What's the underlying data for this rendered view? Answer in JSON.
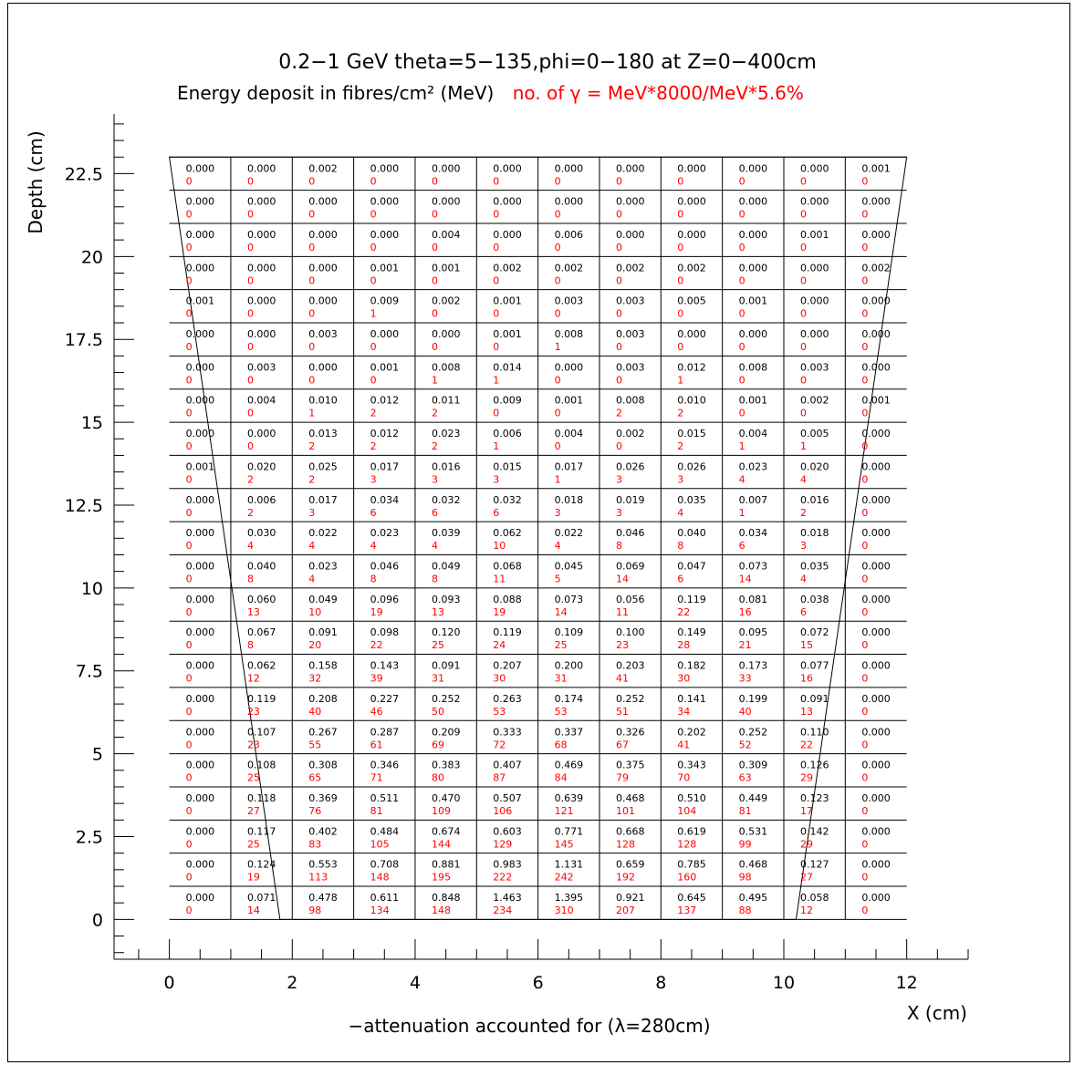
{
  "chart_data": {
    "type": "heatmap",
    "title": "0.2−1 GeV theta=5−135,phi=0−180 at Z=0−400cm",
    "subtitle": "Energy deposit in fibres/cm² (MeV)",
    "subtitle_red": "no. of γ = MeV*8000/MeV*5.6%",
    "xlabel": "X (cm)",
    "ylabel": "Depth (cm)",
    "note": "−attenuation accounted for (λ=280cm)",
    "xlim": [
      -0.9,
      13.0
    ],
    "ylim": [
      -1.2,
      24.3
    ],
    "x_ticks": [
      0,
      2,
      4,
      6,
      8,
      10,
      12
    ],
    "y_ticks": [
      0,
      2.5,
      5,
      7.5,
      10,
      12.5,
      15,
      17.5,
      20,
      22.5
    ],
    "x_tick_labels": [
      "0",
      "2",
      "4",
      "6",
      "8",
      "10",
      "12"
    ],
    "y_tick_labels": [
      "0",
      "2.5",
      "5",
      "7.5",
      "10",
      "12.5",
      "15",
      "17.5",
      "20",
      "22.5"
    ],
    "x_edges": [
      0,
      2,
      4,
      6,
      8,
      10,
      12
    ],
    "grid_x": [
      0,
      1,
      2,
      3,
      4,
      5,
      6,
      7,
      8,
      9,
      10,
      11,
      12
    ],
    "grid_y": [
      0,
      1,
      2,
      3,
      4,
      5,
      6,
      7,
      8,
      9,
      10,
      11,
      12,
      13,
      14,
      15,
      16,
      17,
      18,
      19,
      20,
      21,
      22,
      23
    ],
    "trapezoid": {
      "bottom": [
        1.8,
        10.2
      ],
      "top": [
        0,
        12
      ],
      "y_top": 23
    },
    "row_y_bottom_first": [
      0,
      1,
      2,
      3,
      4,
      5,
      6,
      7,
      8,
      9,
      10,
      11,
      12,
      13,
      14,
      15,
      16,
      17,
      18,
      19,
      20,
      21,
      22
    ],
    "energy_rows_top_first": [
      [
        "0.000",
        "0.000",
        "0.002",
        "0.000",
        "0.000",
        "0.000",
        "0.000",
        "0.000",
        "0.000",
        "0.000",
        "0.000",
        "0.001"
      ],
      [
        "0.000",
        "0.000",
        "0.000",
        "0.000",
        "0.000",
        "0.000",
        "0.000",
        "0.000",
        "0.000",
        "0.000",
        "0.000",
        "0.000"
      ],
      [
        "0.000",
        "0.000",
        "0.000",
        "0.000",
        "0.004",
        "0.000",
        "0.006",
        "0.000",
        "0.000",
        "0.000",
        "0.001",
        "0.000"
      ],
      [
        "0.000",
        "0.000",
        "0.000",
        "0.001",
        "0.001",
        "0.002",
        "0.002",
        "0.002",
        "0.002",
        "0.000",
        "0.000",
        "0.002"
      ],
      [
        "0.001",
        "0.000",
        "0.000",
        "0.009",
        "0.002",
        "0.001",
        "0.003",
        "0.003",
        "0.005",
        "0.001",
        "0.000",
        "0.000"
      ],
      [
        "0.000",
        "0.000",
        "0.003",
        "0.000",
        "0.000",
        "0.001",
        "0.008",
        "0.003",
        "0.000",
        "0.000",
        "0.000",
        "0.000"
      ],
      [
        "0.000",
        "0.003",
        "0.000",
        "0.001",
        "0.008",
        "0.014",
        "0.000",
        "0.003",
        "0.012",
        "0.008",
        "0.003",
        "0.000"
      ],
      [
        "0.000",
        "0.004",
        "0.010",
        "0.012",
        "0.011",
        "0.009",
        "0.001",
        "0.008",
        "0.010",
        "0.001",
        "0.002",
        "0.001"
      ],
      [
        "0.000",
        "0.000",
        "0.013",
        "0.012",
        "0.023",
        "0.006",
        "0.004",
        "0.002",
        "0.015",
        "0.004",
        "0.005",
        "0.000"
      ],
      [
        "0.001",
        "0.020",
        "0.025",
        "0.017",
        "0.016",
        "0.015",
        "0.017",
        "0.026",
        "0.026",
        "0.023",
        "0.020",
        "0.000"
      ],
      [
        "0.000",
        "0.006",
        "0.017",
        "0.034",
        "0.032",
        "0.032",
        "0.018",
        "0.019",
        "0.035",
        "0.007",
        "0.016",
        "0.000"
      ],
      [
        "0.000",
        "0.030",
        "0.022",
        "0.023",
        "0.039",
        "0.062",
        "0.022",
        "0.046",
        "0.040",
        "0.034",
        "0.018",
        "0.000"
      ],
      [
        "0.000",
        "0.040",
        "0.023",
        "0.046",
        "0.049",
        "0.068",
        "0.045",
        "0.069",
        "0.047",
        "0.073",
        "0.035",
        "0.000"
      ],
      [
        "0.000",
        "0.060",
        "0.049",
        "0.096",
        "0.093",
        "0.088",
        "0.073",
        "0.056",
        "0.119",
        "0.081",
        "0.038",
        "0.000"
      ],
      [
        "0.000",
        "0.067",
        "0.091",
        "0.098",
        "0.120",
        "0.119",
        "0.109",
        "0.100",
        "0.149",
        "0.095",
        "0.072",
        "0.000"
      ],
      [
        "0.000",
        "0.062",
        "0.158",
        "0.143",
        "0.091",
        "0.207",
        "0.200",
        "0.203",
        "0.182",
        "0.173",
        "0.077",
        "0.000"
      ],
      [
        "0.000",
        "0.119",
        "0.208",
        "0.227",
        "0.252",
        "0.263",
        "0.174",
        "0.252",
        "0.141",
        "0.199",
        "0.091",
        "0.000"
      ],
      [
        "0.000",
        "0.107",
        "0.267",
        "0.287",
        "0.209",
        "0.333",
        "0.337",
        "0.326",
        "0.202",
        "0.252",
        "0.110",
        "0.000"
      ],
      [
        "0.000",
        "0.108",
        "0.308",
        "0.346",
        "0.383",
        "0.407",
        "0.469",
        "0.375",
        "0.343",
        "0.309",
        "0.126",
        "0.000"
      ],
      [
        "0.000",
        "0.118",
        "0.369",
        "0.511",
        "0.470",
        "0.507",
        "0.639",
        "0.468",
        "0.510",
        "0.449",
        "0.123",
        "0.000"
      ],
      [
        "0.000",
        "0.117",
        "0.402",
        "0.484",
        "0.674",
        "0.603",
        "0.771",
        "0.668",
        "0.619",
        "0.531",
        "0.142",
        "0.000"
      ],
      [
        "0.000",
        "0.124",
        "0.553",
        "0.708",
        "0.881",
        "0.983",
        "1.131",
        "0.659",
        "0.785",
        "0.468",
        "0.127",
        "0.000"
      ],
      [
        "0.000",
        "0.071",
        "0.478",
        "0.611",
        "0.848",
        "1.463",
        "1.395",
        "0.921",
        "0.645",
        "0.495",
        "0.058",
        "0.000"
      ]
    ],
    "photon_rows_top_first": [
      [
        "0",
        "0",
        "0",
        "0",
        "0",
        "0",
        "0",
        "0",
        "0",
        "0",
        "0",
        "0"
      ],
      [
        "0",
        "0",
        "0",
        "0",
        "0",
        "0",
        "0",
        "0",
        "0",
        "0",
        "0",
        "0"
      ],
      [
        "0",
        "0",
        "0",
        "0",
        "0",
        "0",
        "0",
        "0",
        "0",
        "0",
        "0",
        "0"
      ],
      [
        "0",
        "0",
        "0",
        "0",
        "0",
        "0",
        "0",
        "0",
        "0",
        "0",
        "0",
        "0"
      ],
      [
        "0",
        "0",
        "0",
        "1",
        "0",
        "0",
        "0",
        "0",
        "0",
        "0",
        "0",
        "0"
      ],
      [
        "0",
        "0",
        "0",
        "0",
        "0",
        "0",
        "1",
        "0",
        "0",
        "0",
        "0",
        "0"
      ],
      [
        "0",
        "0",
        "0",
        "0",
        "1",
        "1",
        "0",
        "0",
        "1",
        "0",
        "0",
        "0"
      ],
      [
        "0",
        "0",
        "1",
        "2",
        "2",
        "0",
        "0",
        "2",
        "2",
        "0",
        "0",
        "0"
      ],
      [
        "0",
        "0",
        "2",
        "2",
        "2",
        "1",
        "0",
        "0",
        "2",
        "1",
        "1",
        "0"
      ],
      [
        "0",
        "2",
        "2",
        "3",
        "3",
        "3",
        "1",
        "3",
        "3",
        "4",
        "4",
        "0"
      ],
      [
        "0",
        "2",
        "3",
        "6",
        "6",
        "6",
        "3",
        "3",
        "4",
        "1",
        "2",
        "0"
      ],
      [
        "0",
        "4",
        "4",
        "4",
        "4",
        "10",
        "4",
        "8",
        "8",
        "6",
        "3",
        "0"
      ],
      [
        "0",
        "8",
        "4",
        "8",
        "8",
        "11",
        "5",
        "14",
        "6",
        "14",
        "4",
        "0"
      ],
      [
        "0",
        "13",
        "10",
        "19",
        "13",
        "19",
        "14",
        "11",
        "22",
        "16",
        "6",
        "0"
      ],
      [
        "0",
        "8",
        "20",
        "22",
        "25",
        "24",
        "25",
        "23",
        "28",
        "21",
        "15",
        "0"
      ],
      [
        "0",
        "12",
        "32",
        "39",
        "31",
        "30",
        "31",
        "41",
        "30",
        "33",
        "16",
        "0"
      ],
      [
        "0",
        "23",
        "40",
        "46",
        "50",
        "53",
        "53",
        "51",
        "34",
        "40",
        "13",
        "0"
      ],
      [
        "0",
        "23",
        "55",
        "61",
        "69",
        "72",
        "68",
        "67",
        "41",
        "52",
        "22",
        "0"
      ],
      [
        "0",
        "25",
        "65",
        "71",
        "80",
        "87",
        "84",
        "79",
        "70",
        "63",
        "29",
        "0"
      ],
      [
        "0",
        "27",
        "76",
        "81",
        "109",
        "106",
        "121",
        "101",
        "104",
        "81",
        "17",
        "0"
      ],
      [
        "0",
        "25",
        "83",
        "105",
        "144",
        "129",
        "145",
        "128",
        "128",
        "99",
        "29",
        "0"
      ],
      [
        "0",
        "19",
        "113",
        "148",
        "195",
        "222",
        "242",
        "192",
        "160",
        "98",
        "27",
        "0"
      ],
      [
        "0",
        "14",
        "98",
        "134",
        "148",
        "234",
        "310",
        "207",
        "137",
        "88",
        "12",
        "0"
      ]
    ]
  }
}
